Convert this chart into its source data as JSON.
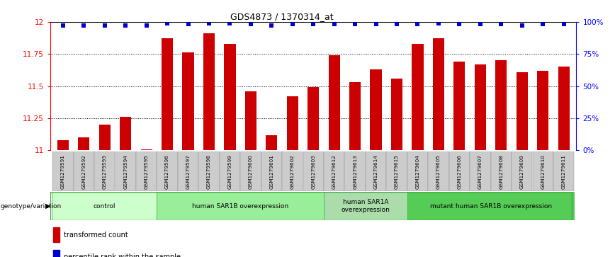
{
  "title": "GDS4873 / 1370314_at",
  "samples": [
    "GSM1279591",
    "GSM1279592",
    "GSM1279593",
    "GSM1279594",
    "GSM1279595",
    "GSM1279596",
    "GSM1279597",
    "GSM1279598",
    "GSM1279599",
    "GSM1279600",
    "GSM1279601",
    "GSM1279602",
    "GSM1279603",
    "GSM1279612",
    "GSM1279613",
    "GSM1279614",
    "GSM1279615",
    "GSM1279604",
    "GSM1279605",
    "GSM1279606",
    "GSM1279607",
    "GSM1279608",
    "GSM1279609",
    "GSM1279610",
    "GSM1279611"
  ],
  "bar_values": [
    11.08,
    11.1,
    11.2,
    11.26,
    11.01,
    11.87,
    11.76,
    11.91,
    11.83,
    11.46,
    11.12,
    11.42,
    11.49,
    11.74,
    11.53,
    11.63,
    11.56,
    11.83,
    11.87,
    11.69,
    11.67,
    11.7,
    11.61,
    11.62,
    11.65
  ],
  "percentile_values": [
    97,
    97,
    97,
    97,
    97,
    99,
    98,
    99,
    99,
    98,
    97,
    98,
    98,
    98,
    98,
    98,
    98,
    98,
    99,
    98,
    98,
    98,
    97,
    98,
    98
  ],
  "bar_color": "#cc0000",
  "dot_color": "#0000cc",
  "ylim_left": [
    11.0,
    12.0
  ],
  "ylim_right": [
    0,
    100
  ],
  "yticks_left": [
    11.0,
    11.25,
    11.5,
    11.75,
    12.0
  ],
  "yticks_right": [
    0,
    25,
    50,
    75,
    100
  ],
  "ytick_labels_left": [
    "11",
    "11.25",
    "11.5",
    "11.75",
    "12"
  ],
  "ytick_labels_right": [
    "0%",
    "25%",
    "50%",
    "75%",
    "100%"
  ],
  "groups": [
    {
      "label": "control",
      "start": 0,
      "end": 5,
      "color": "#ccffcc"
    },
    {
      "label": "human SAR1B overexpression",
      "start": 5,
      "end": 13,
      "color": "#99ee99"
    },
    {
      "label": "human SAR1A\noverexpression",
      "start": 13,
      "end": 17,
      "color": "#aaddaa"
    },
    {
      "label": "mutant human SAR1B overexpression",
      "start": 17,
      "end": 25,
      "color": "#55cc55"
    }
  ],
  "xlabel_left": "genotype/variation",
  "legend_items": [
    {
      "color": "#cc0000",
      "label": "transformed count"
    },
    {
      "color": "#0000cc",
      "label": "percentile rank within the sample"
    }
  ],
  "bg_color": "#ffffff",
  "sample_bg_color": "#cccccc"
}
